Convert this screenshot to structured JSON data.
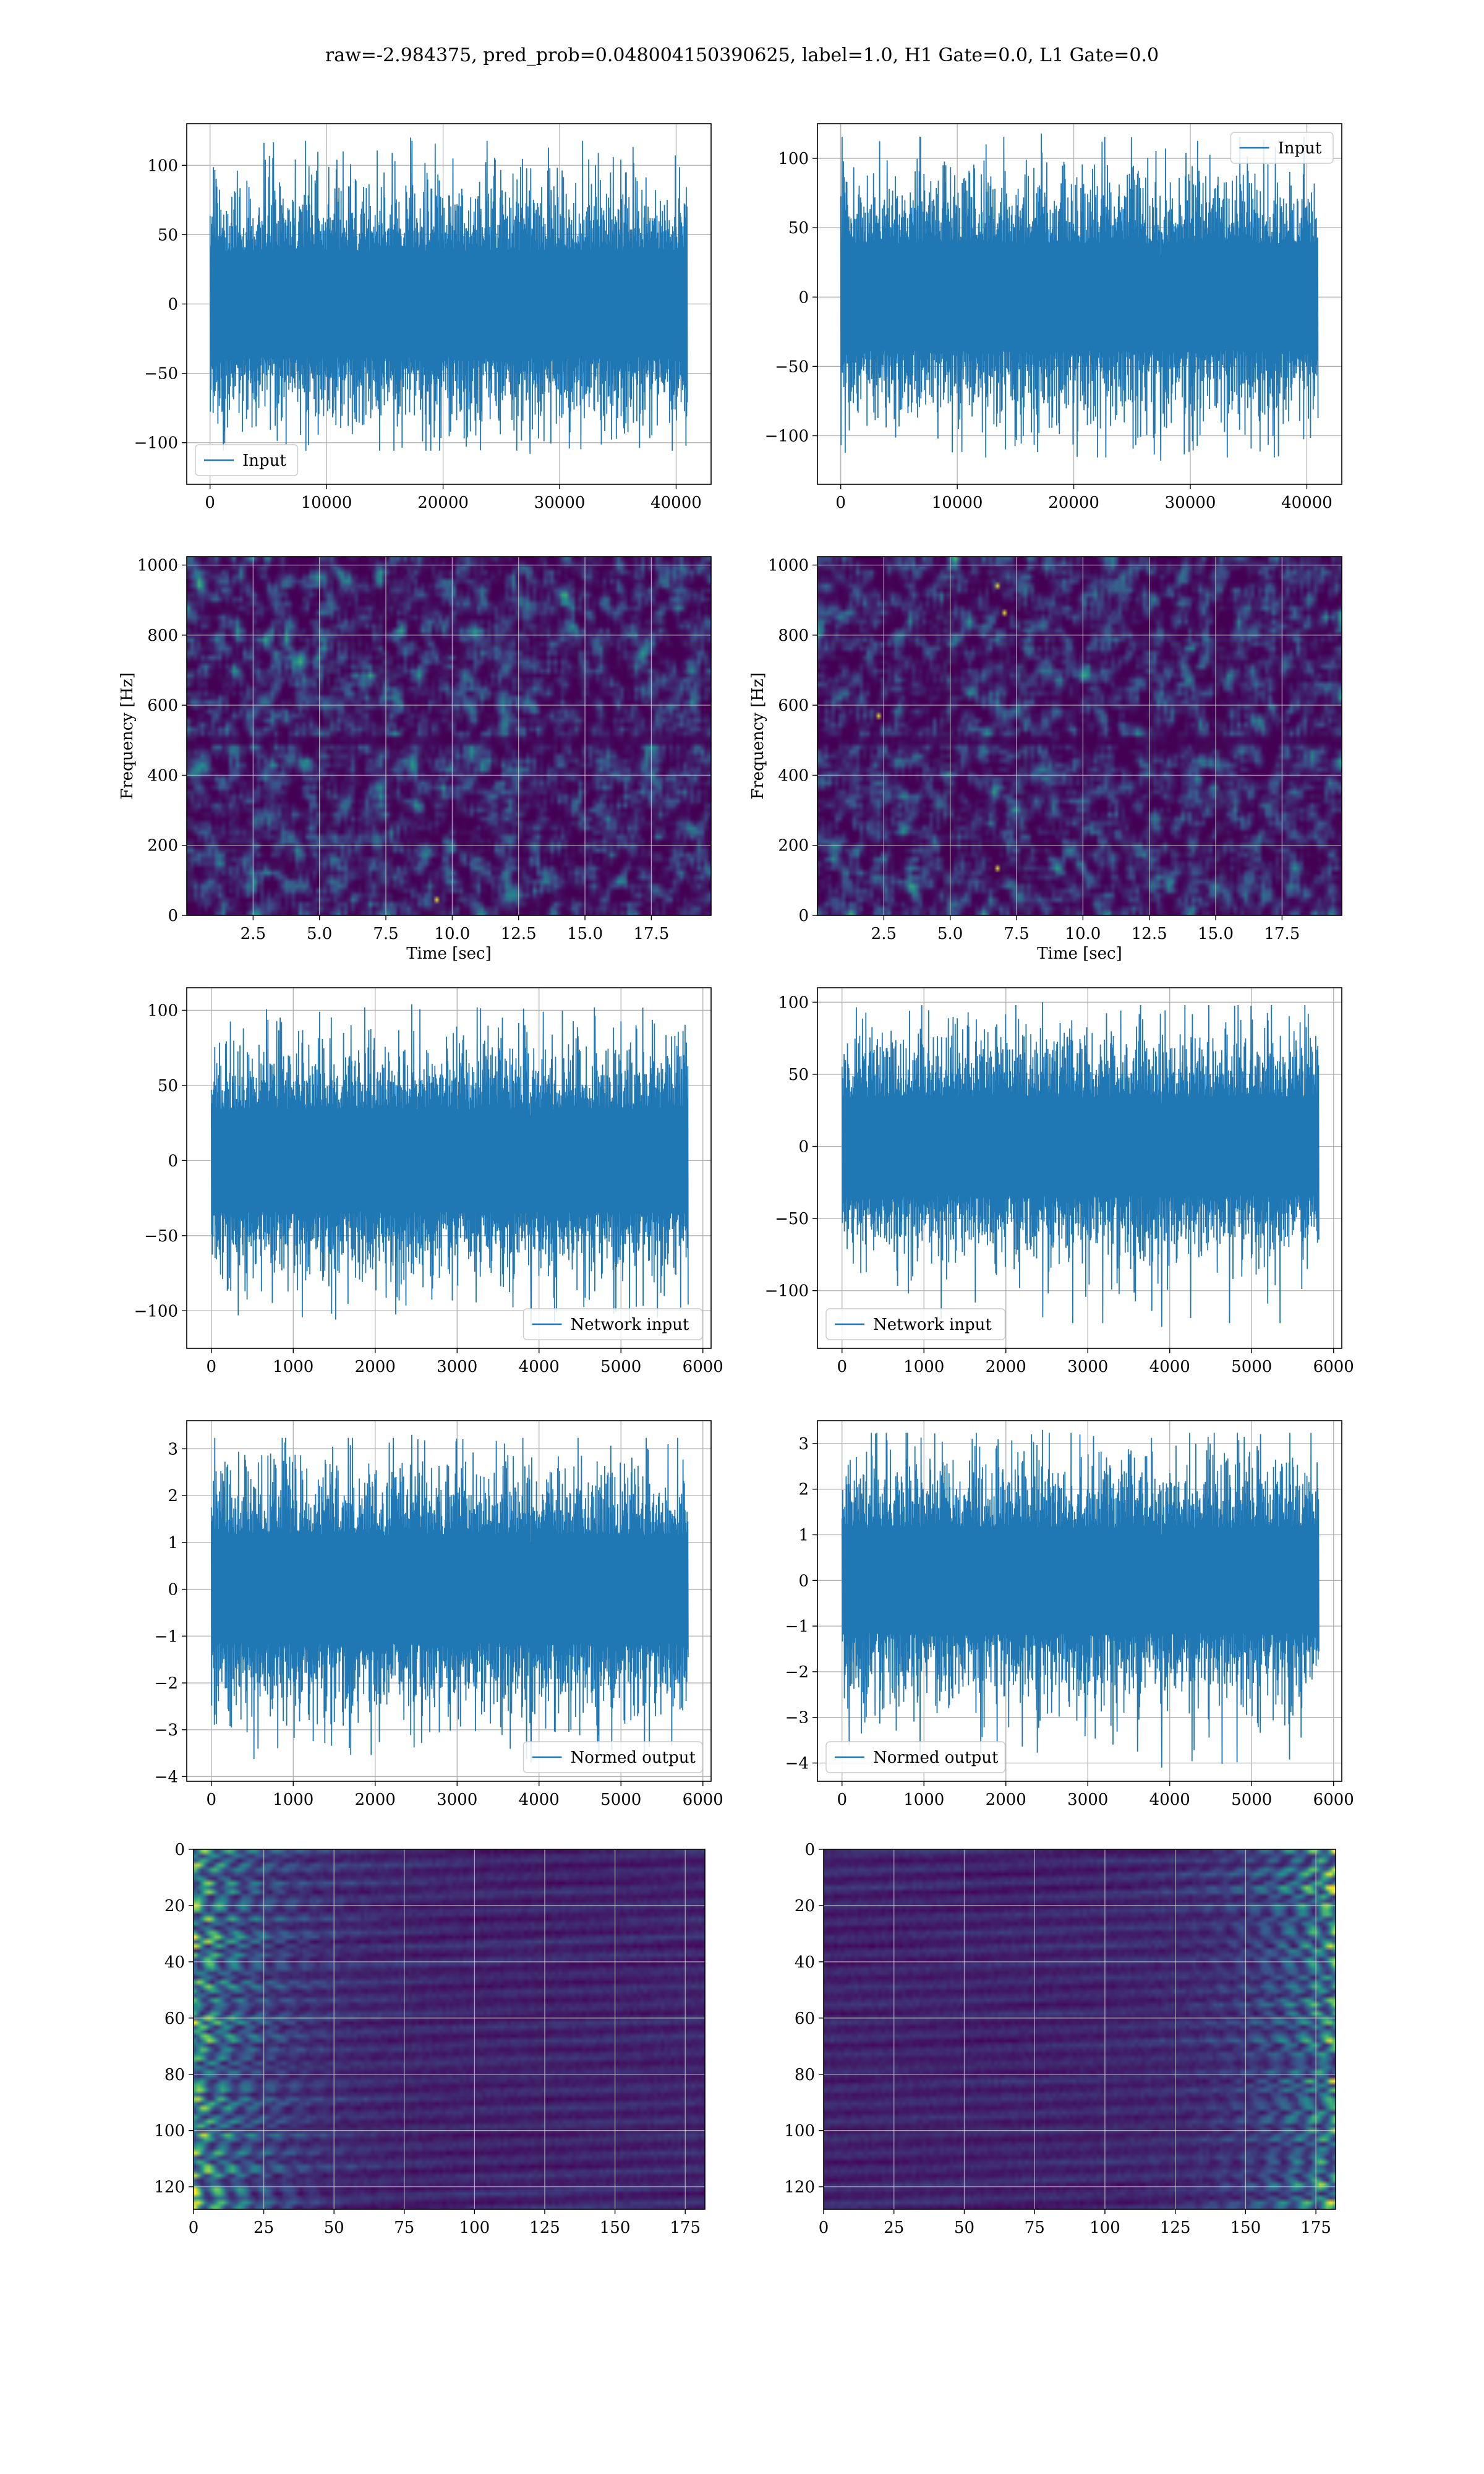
{
  "figure": {
    "suptitle": "raw=-2.984375, pred_prob=0.048004150390625, label=1.0, H1 Gate=0.0, L1 Gate=0.0"
  },
  "colors": {
    "line": "#1f77b4",
    "grid": "#b0b0b0",
    "viridis": [
      "#440154",
      "#3b528b",
      "#21918c",
      "#5ec962",
      "#fde725"
    ]
  },
  "chart_data": [
    {
      "id": "input-h1",
      "type": "line",
      "xlim": [
        -2000,
        43000
      ],
      "ylim": [
        -130,
        130
      ],
      "xticks": [
        0,
        10000,
        20000,
        30000,
        40000
      ],
      "xtick_labels": [
        "0",
        "10000",
        "20000",
        "30000",
        "40000"
      ],
      "yticks": [
        -100,
        -50,
        0,
        50,
        100
      ],
      "ytick_labels": [
        "−100",
        "−50",
        "0",
        "50",
        "100"
      ],
      "xlabel": "",
      "ylabel": "",
      "grid": true,
      "legend_loc": "lower-left",
      "series": [
        {
          "name": "Input",
          "x_range": [
            0,
            40960
          ],
          "core_band": [
            -30,
            30
          ],
          "typical_peak": [
            -70,
            70
          ],
          "max": 120,
          "min": -108
        }
      ]
    },
    {
      "id": "input-l1",
      "type": "line",
      "xlim": [
        -2000,
        43000
      ],
      "ylim": [
        -135,
        125
      ],
      "xticks": [
        0,
        10000,
        20000,
        30000,
        40000
      ],
      "xtick_labels": [
        "0",
        "10000",
        "20000",
        "30000",
        "40000"
      ],
      "yticks": [
        -100,
        -50,
        0,
        50,
        100
      ],
      "ytick_labels": [
        "−100",
        "−50",
        "0",
        "50",
        "100"
      ],
      "xlabel": "",
      "ylabel": "",
      "grid": true,
      "legend_loc": "upper-right",
      "series": [
        {
          "name": "Input",
          "x_range": [
            0,
            40960
          ],
          "core_band": [
            -30,
            30
          ],
          "typical_peak": [
            -70,
            70
          ],
          "max": 118,
          "min": -118
        }
      ]
    },
    {
      "id": "spectrogram-h1",
      "type": "heatmap",
      "xlim": [
        0,
        19.75
      ],
      "ylim": [
        0,
        1024
      ],
      "xticks": [
        2.5,
        5.0,
        7.5,
        10.0,
        12.5,
        15.0,
        17.5
      ],
      "xtick_labels": [
        "2.5",
        "5.0",
        "7.5",
        "10.0",
        "12.5",
        "15.0",
        "17.5"
      ],
      "yticks": [
        0,
        200,
        400,
        600,
        800,
        1000
      ],
      "ytick_labels": [
        "0",
        "200",
        "400",
        "600",
        "800",
        "1000"
      ],
      "xlabel": "Time [sec]",
      "ylabel": "Frequency [Hz]",
      "grid": true,
      "colormap": "viridis",
      "hot_spots": [
        {
          "t": 9.4,
          "f": 45
        }
      ]
    },
    {
      "id": "spectrogram-l1",
      "type": "heatmap",
      "xlim": [
        0,
        19.75
      ],
      "ylim": [
        0,
        1024
      ],
      "xticks": [
        2.5,
        5.0,
        7.5,
        10.0,
        12.5,
        15.0,
        17.5
      ],
      "xtick_labels": [
        "2.5",
        "5.0",
        "7.5",
        "10.0",
        "12.5",
        "15.0",
        "17.5"
      ],
      "yticks": [
        0,
        200,
        400,
        600,
        800,
        1000
      ],
      "ytick_labels": [
        "0",
        "200",
        "400",
        "600",
        "800",
        "1000"
      ],
      "xlabel": "Time [sec]",
      "ylabel": "Frequency [Hz]",
      "grid": true,
      "colormap": "viridis",
      "hot_spots": [
        {
          "t": 2.3,
          "f": 575
        },
        {
          "t": 6.7,
          "f": 945
        },
        {
          "t": 7.0,
          "f": 870
        },
        {
          "t": 6.8,
          "f": 130
        }
      ]
    },
    {
      "id": "network-input-h1",
      "type": "line",
      "xlim": [
        -300,
        6100
      ],
      "ylim": [
        -125,
        115
      ],
      "xticks": [
        0,
        1000,
        2000,
        3000,
        4000,
        5000,
        6000
      ],
      "xtick_labels": [
        "0",
        "1000",
        "2000",
        "3000",
        "4000",
        "5000",
        "6000"
      ],
      "yticks": [
        -100,
        -50,
        0,
        50,
        100
      ],
      "ytick_labels": [
        "−100",
        "−50",
        "0",
        "50",
        "100"
      ],
      "xlabel": "",
      "ylabel": "",
      "grid": true,
      "legend_loc": "lower-right",
      "series": [
        {
          "name": "Network input",
          "x_range": [
            0,
            5820
          ],
          "core_band": [
            -30,
            30
          ],
          "typical_peak": [
            -62,
            62
          ],
          "max": 104,
          "min": -110
        }
      ]
    },
    {
      "id": "network-input-l1",
      "type": "line",
      "xlim": [
        -300,
        6100
      ],
      "ylim": [
        -140,
        110
      ],
      "xticks": [
        0,
        1000,
        2000,
        3000,
        4000,
        5000,
        6000
      ],
      "xtick_labels": [
        "0",
        "1000",
        "2000",
        "3000",
        "4000",
        "5000",
        "6000"
      ],
      "yticks": [
        -100,
        -50,
        0,
        50,
        100
      ],
      "ytick_labels": [
        "−100",
        "−50",
        "0",
        "50",
        "100"
      ],
      "xlabel": "",
      "ylabel": "",
      "grid": true,
      "legend_loc": "lower-left",
      "series": [
        {
          "name": "Network input",
          "x_range": [
            0,
            5820
          ],
          "core_band": [
            -30,
            30
          ],
          "typical_peak": [
            -62,
            62
          ],
          "max": 100,
          "min": -125
        }
      ]
    },
    {
      "id": "normed-output-h1",
      "type": "line",
      "xlim": [
        -300,
        6100
      ],
      "ylim": [
        -4.1,
        3.6
      ],
      "xticks": [
        0,
        1000,
        2000,
        3000,
        4000,
        5000,
        6000
      ],
      "xtick_labels": [
        "0",
        "1000",
        "2000",
        "3000",
        "4000",
        "5000",
        "6000"
      ],
      "yticks": [
        -4,
        -3,
        -2,
        -1,
        0,
        1,
        2,
        3
      ],
      "ytick_labels": [
        "−4",
        "−3",
        "−2",
        "−1",
        "0",
        "1",
        "2",
        "3"
      ],
      "xlabel": "",
      "ylabel": "",
      "grid": true,
      "legend_loc": "lower-right",
      "series": [
        {
          "name": "Normed output",
          "x_range": [
            0,
            5820
          ],
          "core_band": [
            -1,
            1
          ],
          "typical_peak": [
            -2.1,
            2.1
          ],
          "max": 3.3,
          "min": -3.7
        }
      ]
    },
    {
      "id": "normed-output-l1",
      "type": "line",
      "xlim": [
        -300,
        6100
      ],
      "ylim": [
        -4.4,
        3.5
      ],
      "xticks": [
        0,
        1000,
        2000,
        3000,
        4000,
        5000,
        6000
      ],
      "xtick_labels": [
        "0",
        "1000",
        "2000",
        "3000",
        "4000",
        "5000",
        "6000"
      ],
      "yticks": [
        -4,
        -3,
        -2,
        -1,
        0,
        1,
        2,
        3
      ],
      "ytick_labels": [
        "−4",
        "−3",
        "−2",
        "−1",
        "0",
        "1",
        "2",
        "3"
      ],
      "xlabel": "",
      "ylabel": "",
      "grid": true,
      "legend_loc": "lower-left",
      "series": [
        {
          "name": "Normed output",
          "x_range": [
            0,
            5820
          ],
          "core_band": [
            -1,
            1
          ],
          "typical_peak": [
            -2.1,
            2.1
          ],
          "max": 3.3,
          "min": -4.1
        }
      ]
    },
    {
      "id": "feature-map-h1",
      "type": "heatmap",
      "xlim": [
        0,
        182
      ],
      "ylim": [
        128,
        0
      ],
      "xticks": [
        0,
        25,
        50,
        75,
        100,
        125,
        150,
        175
      ],
      "xtick_labels": [
        "0",
        "25",
        "50",
        "75",
        "100",
        "125",
        "150",
        "175"
      ],
      "yticks": [
        0,
        20,
        40,
        60,
        80,
        100,
        120
      ],
      "ytick_labels": [
        "0",
        "20",
        "40",
        "60",
        "80",
        "100",
        "120"
      ],
      "xlabel": "",
      "ylabel": "",
      "grid": true,
      "colormap": "viridis",
      "energy": "left"
    },
    {
      "id": "feature-map-l1",
      "type": "heatmap",
      "xlim": [
        0,
        182
      ],
      "ylim": [
        128,
        0
      ],
      "xticks": [
        0,
        25,
        50,
        75,
        100,
        125,
        150,
        175
      ],
      "xtick_labels": [
        "0",
        "25",
        "50",
        "75",
        "100",
        "125",
        "150",
        "175"
      ],
      "yticks": [
        0,
        20,
        40,
        60,
        80,
        100,
        120
      ],
      "ytick_labels": [
        "0",
        "20",
        "40",
        "60",
        "80",
        "100",
        "120"
      ],
      "xlabel": "",
      "ylabel": "",
      "grid": true,
      "colormap": "viridis",
      "energy": "right"
    }
  ]
}
